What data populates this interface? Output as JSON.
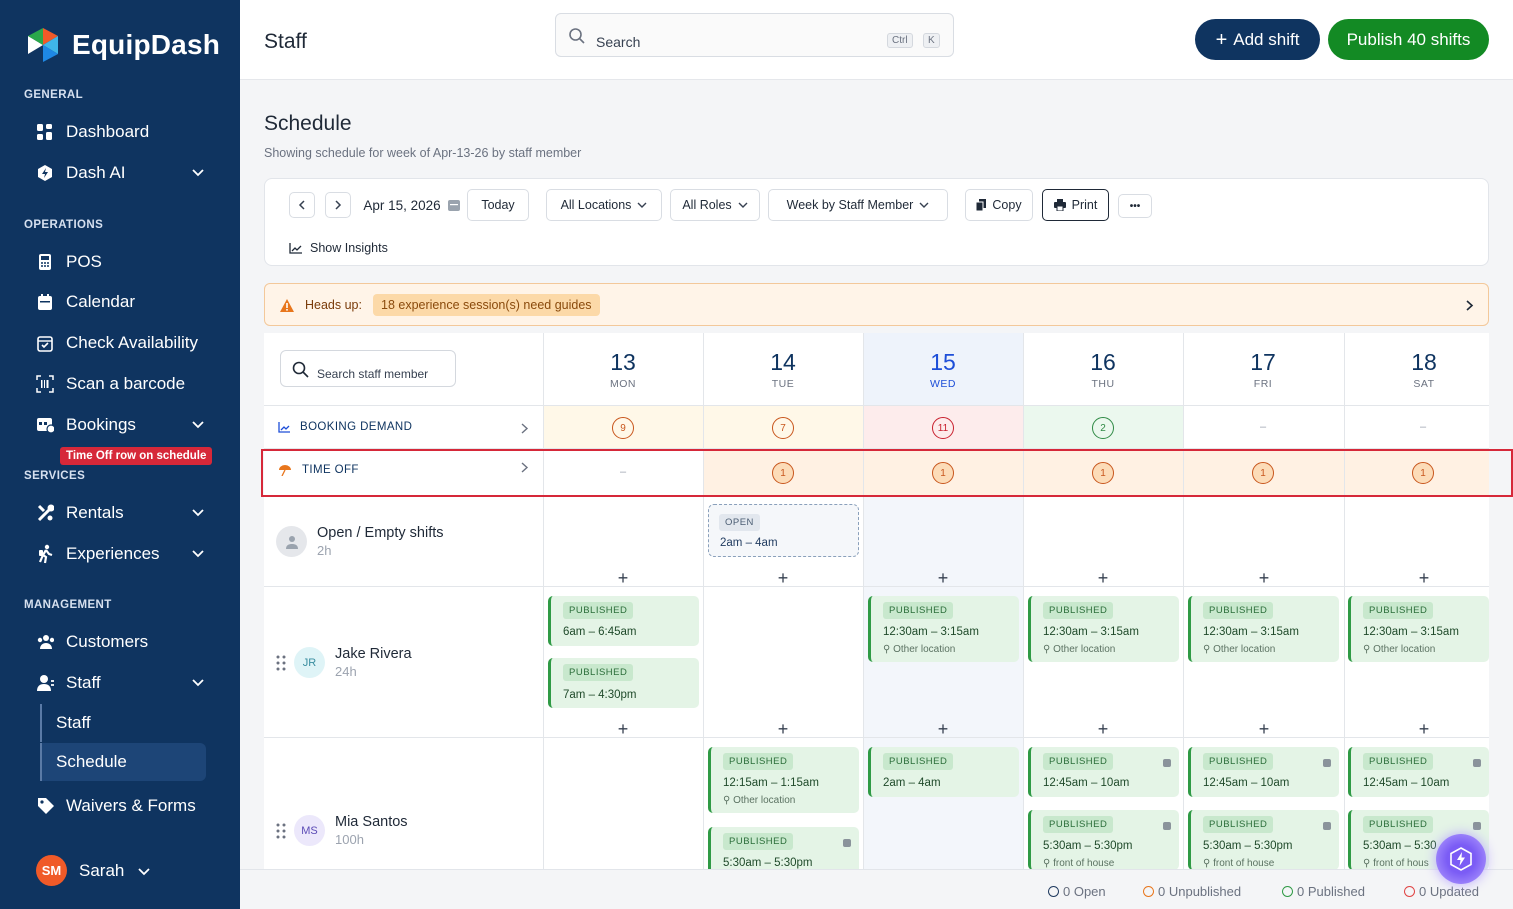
{
  "brand": "EquipDash",
  "sidebar": {
    "sections": {
      "general": "GENERAL",
      "operations": "OPERATIONS",
      "services": "SERVICES",
      "management": "MANAGEMENT"
    },
    "items": {
      "dashboard": "Dashboard",
      "dash_ai": "Dash AI",
      "pos": "POS",
      "calendar": "Calendar",
      "check_availability": "Check Availability",
      "scan_barcode": "Scan a barcode",
      "bookings": "Bookings",
      "rentals": "Rentals",
      "experiences": "Experiences",
      "customers": "Customers",
      "staff": "Staff",
      "staff_sub": "Staff",
      "schedule": "Schedule",
      "waivers": "Waivers & Forms"
    },
    "tooltip": "Time Off row on schedule",
    "user": {
      "initials": "SM",
      "name": "Sarah"
    }
  },
  "topbar": {
    "title": "Staff",
    "search_placeholder": "Search",
    "kbd_ctrl": "Ctrl",
    "kbd_k": "K",
    "add_shift": "Add shift",
    "publish": "Publish 40 shifts"
  },
  "schedule": {
    "title": "Schedule",
    "subtitle": "Showing schedule for week of Apr-13-26 by staff member"
  },
  "toolbar": {
    "date": "Apr 15, 2026",
    "today": "Today",
    "locations": "All Locations",
    "roles": "All Roles",
    "view": "Week by Staff Member",
    "copy": "Copy",
    "print": "Print",
    "more": "•••",
    "insights": "Show Insights"
  },
  "alert": {
    "label": "Heads up:",
    "message": "18 experience session(s) need guides"
  },
  "grid": {
    "staff_search_placeholder": "Search staff member",
    "days": [
      {
        "num": "13",
        "dow": "MON"
      },
      {
        "num": "14",
        "dow": "TUE"
      },
      {
        "num": "15",
        "dow": "WED"
      },
      {
        "num": "16",
        "dow": "THU"
      },
      {
        "num": "17",
        "dow": "FRI"
      },
      {
        "num": "18",
        "dow": "SAT"
      }
    ],
    "booking_demand": {
      "label": "BOOKING DEMAND",
      "values": [
        "9",
        "7",
        "11",
        "2",
        "–",
        "–"
      ]
    },
    "time_off": {
      "label": "TIME OFF",
      "values": [
        "–",
        "1",
        "1",
        "1",
        "1",
        "1"
      ]
    },
    "open_row": {
      "name": "Open / Empty shifts",
      "hours": "2h",
      "shift_badge": "OPEN",
      "shift_time": "2am – 4am"
    },
    "jake": {
      "initials": "JR",
      "name": "Jake Rivera",
      "hours": "24h",
      "badge": "PUBLISHED",
      "mon1": "6am – 6:45am",
      "mon2": "7am – 4:30pm",
      "rest_time": "12:30am – 3:15am",
      "rest_loc": "Other location"
    },
    "mia": {
      "initials": "MS",
      "name": "Mia Santos",
      "hours": "100h",
      "badge": "PUBLISHED",
      "tue1": "12:15am – 1:15am",
      "tue1_loc": "Other location",
      "tue2": "5:30am – 5:30pm",
      "wed1": "2am – 4am",
      "late1": "12:45am – 10am",
      "late2": "5:30am – 5:30pm",
      "sat2": "5:30am – 5:30",
      "late_loc": "front of house",
      "sat_loc": "front of hous"
    }
  },
  "status": {
    "open": "0 Open",
    "unpublished": "0 Unpublished",
    "published": "0 Published",
    "updated": "0 Updated"
  }
}
